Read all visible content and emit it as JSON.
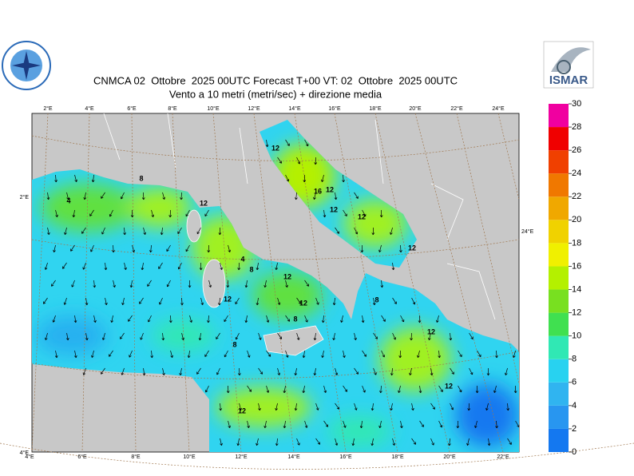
{
  "header": {
    "title": "CNMCA 02  Ottobre  2025 00UTC Forecast T+00 VT: 02  Ottobre  2025 00UTC",
    "subtitle": "Vento a 10 metri (metri/sec) + direzione media"
  },
  "logos": {
    "right": "ISMAR"
  },
  "map": {
    "top_labels": [
      "2°E",
      "4°E",
      "6°E",
      "8°E",
      "10°E",
      "12°E",
      "14°E",
      "16°E",
      "18°E",
      "20°E",
      "22°E",
      "24°E"
    ],
    "bottom_labels": [
      "4°E",
      "6°E",
      "8°E",
      "10°E",
      "12°E",
      "14°E",
      "16°E",
      "18°E",
      "20°E",
      "22°E"
    ],
    "left_labels": [
      "2°E",
      "4°E"
    ],
    "right_labels": [
      "24°E"
    ],
    "contour_labels": [
      "12",
      "16",
      "12",
      "12",
      "12",
      "12",
      "12",
      "8",
      "4",
      "12",
      "8",
      "12",
      "12",
      "8",
      "8",
      "12",
      "8",
      "12",
      "12",
      "4"
    ]
  },
  "colorbar": {
    "ticks": [
      0,
      2,
      4,
      6,
      8,
      10,
      12,
      14,
      16,
      18,
      20,
      22,
      24,
      26,
      28,
      30
    ],
    "colors": [
      "#1478f0",
      "#2896f0",
      "#30b4f0",
      "#28d2f0",
      "#30e8b4",
      "#40e050",
      "#78e020",
      "#b4f000",
      "#f0f000",
      "#f0d200",
      "#f0a800",
      "#f07800",
      "#f04000",
      "#f00000",
      "#f000a0"
    ]
  }
}
